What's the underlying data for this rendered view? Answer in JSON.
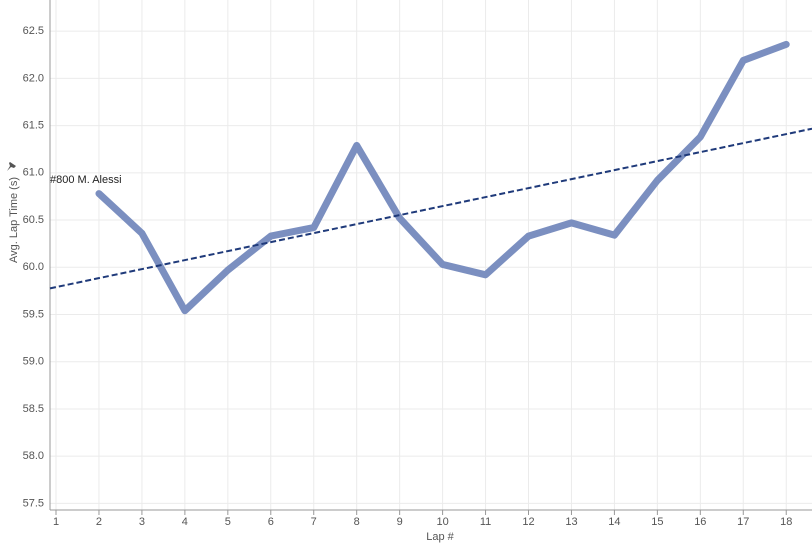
{
  "chart_data": {
    "type": "line",
    "x_label": "Lap #",
    "y_label": "Avg. Lap Time (s)",
    "annotation": "#800 M. Alessi",
    "x": [
      1,
      2,
      3,
      4,
      5,
      6,
      7,
      8,
      9,
      10,
      11,
      12,
      13,
      14,
      15,
      16,
      17,
      18
    ],
    "series": [
      {
        "name": "#800 M. Alessi",
        "color": "#7b8fc0",
        "values": [
          null,
          60.78,
          60.36,
          59.54,
          59.97,
          60.33,
          60.42,
          61.29,
          60.52,
          60.03,
          59.92,
          60.33,
          60.47,
          60.34,
          60.92,
          61.38,
          62.19,
          62.36
        ]
      }
    ],
    "trendline": {
      "color": "#1f3a7a",
      "x": [
        1,
        18
      ],
      "values": [
        59.79,
        61.41
      ]
    },
    "xlim": [
      0.86,
      18.6
    ],
    "ylim": [
      57.43,
      62.83
    ],
    "xticks": [
      1,
      2,
      3,
      4,
      5,
      6,
      7,
      8,
      9,
      10,
      11,
      12,
      13,
      14,
      15,
      16,
      17,
      18
    ],
    "yticks": [
      {
        "value": 57.5,
        "label": "57.5"
      },
      {
        "value": 58,
        "label": "58.0"
      },
      58.5,
      {
        "value": 59,
        "label": "59.0"
      },
      59.5,
      {
        "value": 60,
        "label": "60.0"
      },
      60.5,
      {
        "value": 61,
        "label": "61.0"
      },
      61.5,
      {
        "value": 62,
        "label": "62.0"
      },
      62.5
    ],
    "grid": true
  }
}
